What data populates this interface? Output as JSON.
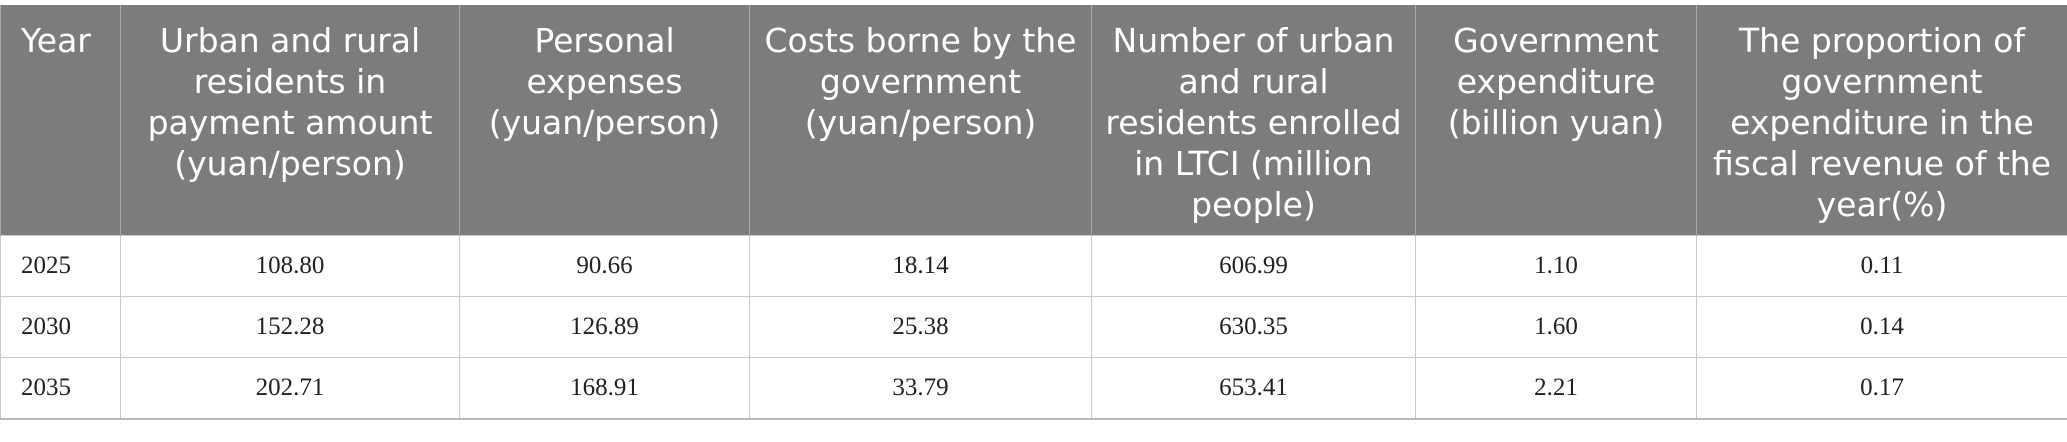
{
  "headers": [
    "Year",
    "Urban and rural residents in payment amount (yuan/person)",
    "Personal expenses (yuan/person)",
    "Costs borne by the government (yuan/person)",
    "Number of urban and rural residents enrolled in LTCI (million people)",
    "Government expenditure (billion yuan)",
    "The proportion of government expenditure in the fiscal revenue of the year(%)"
  ],
  "rows": [
    [
      "2025",
      "108.80",
      "90.66",
      "18.14",
      "606.99",
      "1.10",
      "0.11"
    ],
    [
      "2030",
      "152.28",
      "126.89",
      "25.38",
      "630.35",
      "1.60",
      "0.14"
    ],
    [
      "2035",
      "202.71",
      "168.91",
      "33.79",
      "653.41",
      "2.21",
      "0.17"
    ]
  ]
}
